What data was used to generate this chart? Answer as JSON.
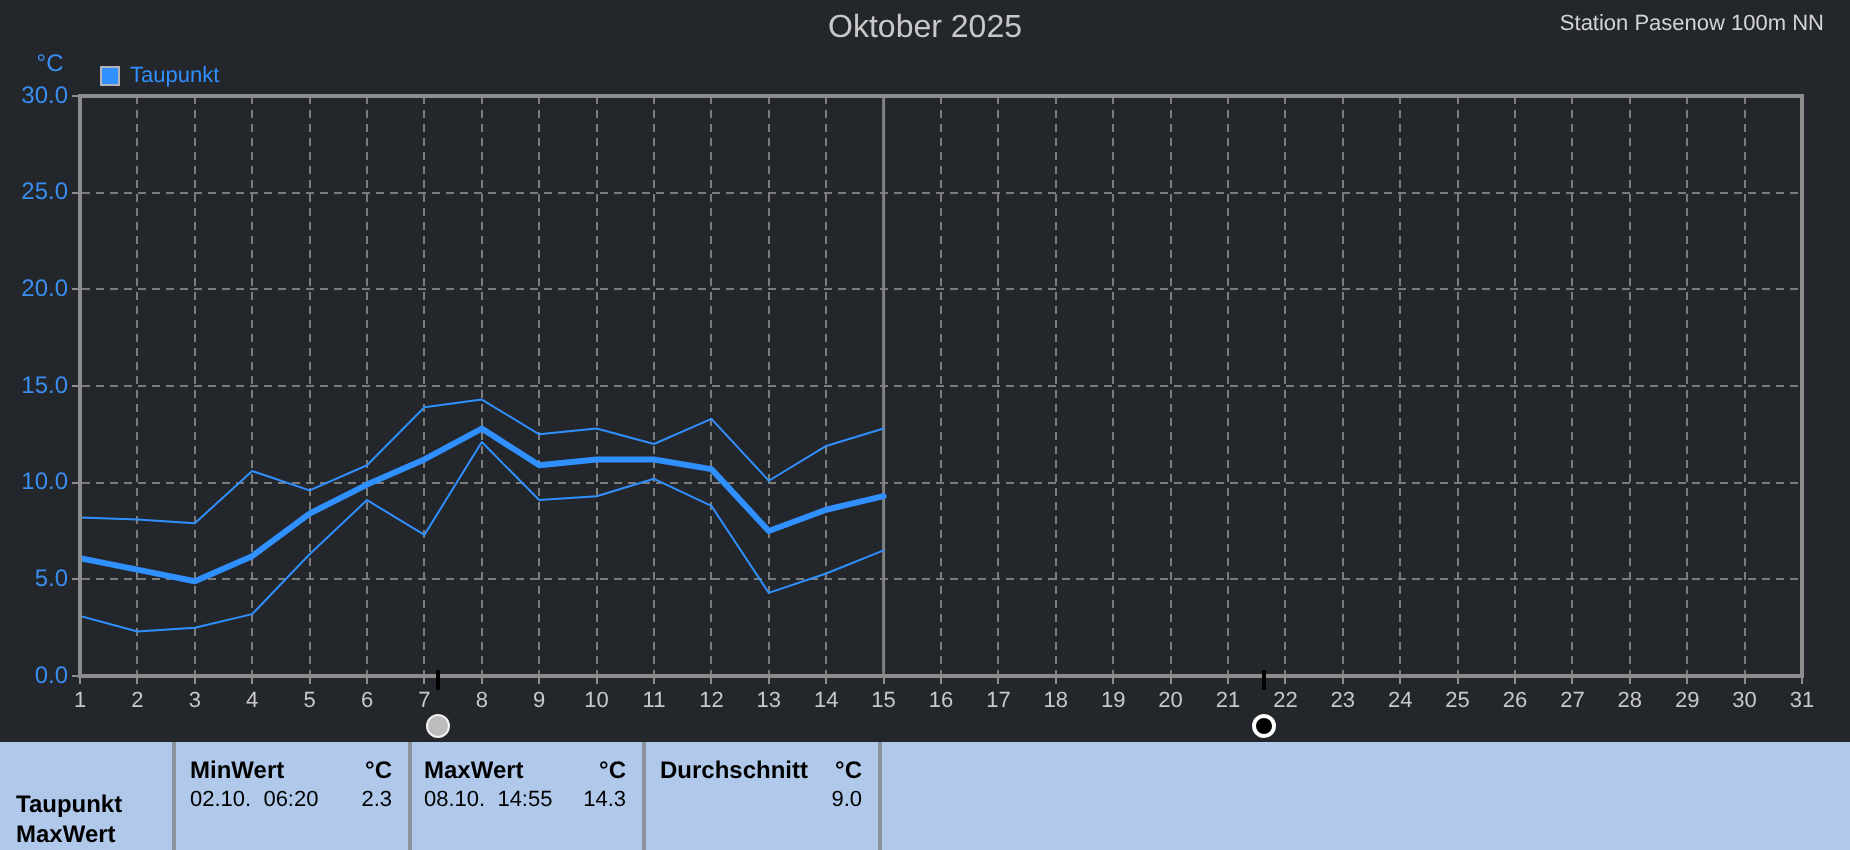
{
  "chart_data": {
    "type": "line",
    "title": "Oktober 2025",
    "subtitle": "Station Pasenow 100m NN",
    "ylabel": "°C",
    "x": [
      1,
      2,
      3,
      4,
      5,
      6,
      7,
      8,
      9,
      10,
      11,
      12,
      13,
      14,
      15
    ],
    "series": [
      {
        "color": "#3090ff",
        "values": [
          8.2,
          8.1,
          7.9,
          10.6,
          9.6,
          10.9,
          13.9,
          14.3,
          12.5,
          12.8,
          12.0,
          13.3,
          10.1,
          11.9,
          12.8
        ]
      },
      {
        "name": "Taupunkt",
        "color": "#3090ff",
        "values": [
          6.1,
          5.5,
          4.9,
          6.2,
          8.4,
          9.9,
          11.2,
          12.8,
          10.9,
          11.2,
          11.2,
          10.7,
          7.5,
          8.6,
          9.3
        ]
      },
      {
        "color": "#3090ff",
        "values": [
          3.1,
          2.3,
          2.5,
          3.2,
          6.3,
          9.1,
          7.3,
          12.1,
          9.1,
          9.3,
          10.2,
          8.8,
          4.3,
          5.3,
          6.5
        ]
      }
    ],
    "xlim": [
      1,
      31
    ],
    "xticks": [
      1,
      2,
      3,
      4,
      5,
      6,
      7,
      8,
      9,
      10,
      11,
      12,
      13,
      14,
      15,
      16,
      17,
      18,
      19,
      20,
      21,
      22,
      23,
      24,
      25,
      26,
      27,
      28,
      29,
      30,
      31
    ],
    "ylim": [
      0,
      30
    ],
    "yticks": [
      {
        "value": 0,
        "label": "0.0"
      },
      {
        "value": 5,
        "label": "5.0"
      },
      {
        "value": 10,
        "label": "10.0"
      },
      {
        "value": 15,
        "label": "15.0"
      },
      {
        "value": 20,
        "label": "20.0"
      },
      {
        "value": 25,
        "label": "25.0"
      },
      {
        "value": 30,
        "label": "30.0"
      }
    ],
    "grid": true,
    "legend": "top left",
    "ref_lines": [
      {
        "axis": "x",
        "value": 15,
        "color": "#808080"
      }
    ],
    "annotations": [
      "Taupunkt",
      "MaxWert",
      "MinWert",
      "°C",
      "02.10.  06:20",
      "2.3",
      "MaxWert",
      "°C",
      "08.10.  14:55",
      "14.3",
      "Durchschnitt",
      "°C",
      "9.0"
    ]
  }
}
